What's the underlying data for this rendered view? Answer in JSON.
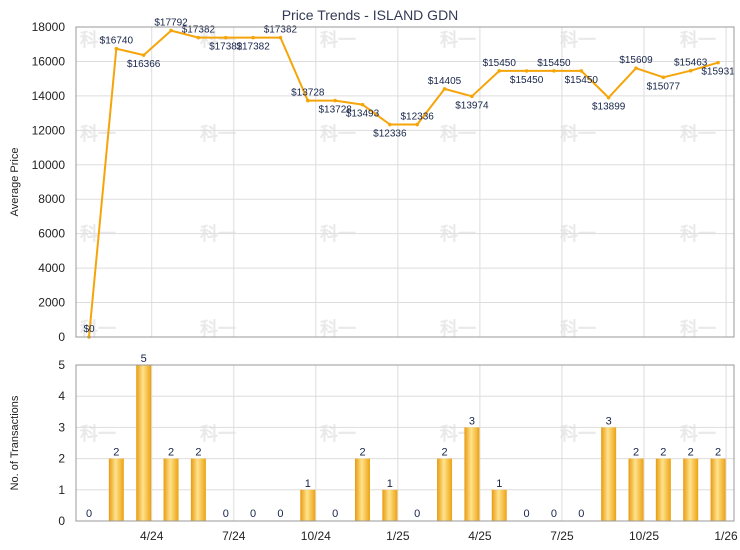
{
  "colors": {
    "line": "#f5a50a",
    "bar_light": "#ffe08a",
    "bar_dark": "#f0a015",
    "grid": "#dddddd",
    "frame": "#999999"
  },
  "watermark": "科一",
  "x_ticks": [
    "4/24",
    "7/24",
    "10/24",
    "1/25",
    "4/25",
    "7/25",
    "10/25",
    "1/26"
  ],
  "x_tick_index": [
    2,
    5,
    8,
    11,
    14,
    17,
    20,
    23
  ],
  "chart_data": [
    {
      "type": "line",
      "title": "Price Trends - ISLAND GDN",
      "ylabel": "Average Price",
      "ylim": [
        0,
        18000
      ],
      "yticks": [
        0,
        2000,
        4000,
        6000,
        8000,
        10000,
        12000,
        14000,
        16000,
        18000
      ],
      "grid": true,
      "values": [
        0,
        16740,
        16366,
        17792,
        17382,
        17382,
        17382,
        17382,
        13728,
        13728,
        13493,
        12336,
        12336,
        14405,
        13974,
        15450,
        15450,
        15450,
        15450,
        13899,
        15609,
        15077,
        15463,
        15931
      ],
      "labels": [
        "$0",
        "$16740",
        "$16366",
        "$17792",
        "$17382",
        "$17382",
        "$17382",
        "$17382",
        "$13728",
        "$13728",
        "$13493",
        "$12336",
        "$12336",
        "$14405",
        "$13974",
        "$15450",
        "$15450",
        "$15450",
        "$15450",
        "$13899",
        "$15609",
        "$15077",
        "$15463",
        "$15931"
      ],
      "label_above": [
        true,
        true,
        false,
        true,
        true,
        false,
        false,
        true,
        true,
        false,
        false,
        false,
        true,
        true,
        false,
        true,
        false,
        true,
        false,
        false,
        true,
        false,
        true,
        false
      ],
      "label_show": [
        true,
        true,
        true,
        true,
        true,
        true,
        true,
        true,
        true,
        true,
        true,
        true,
        true,
        true,
        true,
        true,
        true,
        true,
        true,
        true,
        true,
        true,
        true,
        true
      ]
    },
    {
      "type": "bar",
      "ylabel": "No. of Transactions",
      "ylim": [
        0,
        5
      ],
      "yticks": [
        0,
        1,
        2,
        3,
        4,
        5
      ],
      "grid": true,
      "values": [
        0,
        2,
        5,
        2,
        2,
        0,
        0,
        0,
        1,
        0,
        2,
        1,
        0,
        2,
        3,
        1,
        0,
        0,
        0,
        3,
        2,
        2,
        2,
        2
      ]
    }
  ]
}
